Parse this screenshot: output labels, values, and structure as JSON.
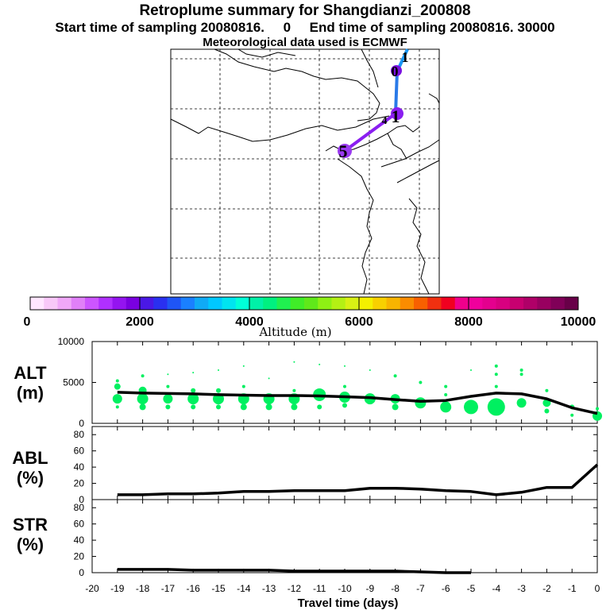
{
  "header": {
    "title": "Retroplume summary for Shangdianzi_200808",
    "subtitle": "Start time of sampling 20080816.     0     End time of sampling 20080816. 30000",
    "met": "Meteorological data used is ECMWF"
  },
  "map": {
    "trajectory_labels": [
      "1",
      "0",
      "1",
      "4",
      "5"
    ]
  },
  "colorbar": {
    "label": "Altitude (m)",
    "ticks": [
      "0",
      "2000",
      "4000",
      "6000",
      "8000",
      "10000"
    ],
    "colors": [
      "#ffe6ff",
      "#f8c8f8",
      "#f0a8f8",
      "#e080f8",
      "#cc55ff",
      "#b030ff",
      "#9414f0",
      "#7a00e0",
      "#4a18e6",
      "#2a30f0",
      "#1f55f5",
      "#1a80ff",
      "#10aaf5",
      "#00c8ff",
      "#00e4f0",
      "#00ffd8",
      "#00f0a8",
      "#00f080",
      "#20f050",
      "#40ec28",
      "#60e81a",
      "#8ef014",
      "#b4f014",
      "#d8f014",
      "#f4f000",
      "#f8d000",
      "#f8b400",
      "#fa8c00",
      "#f86000",
      "#f03010",
      "#f00020",
      "#f0008c",
      "#f0009c",
      "#e4008e",
      "#d80080",
      "#c80070",
      "#b00068",
      "#980060",
      "#800058",
      "#680048"
    ]
  },
  "panels": {
    "alt": {
      "label": "ALT",
      "unit": "(m)",
      "yticks": [
        "0",
        "5000",
        "10000"
      ]
    },
    "abl": {
      "label": "ABL",
      "unit": "(%)",
      "yticks": [
        "0",
        "20",
        "40",
        "60",
        "80"
      ]
    },
    "str": {
      "label": "STR",
      "unit": "(%)",
      "yticks": [
        "0",
        "20",
        "40",
        "60",
        "80"
      ]
    }
  },
  "xaxis": {
    "label": "Travel time (days)",
    "ticks": [
      "-20",
      "-19",
      "-18",
      "-17",
      "-16",
      "-15",
      "-14",
      "-13",
      "-12",
      "-11",
      "-10",
      "-9",
      "-8",
      "-7",
      "-6",
      "-5",
      "-4",
      "-3",
      "-2",
      "-1",
      "0"
    ]
  },
  "chart_data": [
    {
      "type": "line",
      "title": "ALT",
      "ylabel": "ALT (m)",
      "xlabel": "Travel time (days)",
      "xlim": [
        -20,
        0
      ],
      "ylim": [
        0,
        10000
      ],
      "x": [
        -19,
        -18,
        -17,
        -16,
        -15,
        -14,
        -13,
        -12,
        -11,
        -10,
        -9,
        -8,
        -7,
        -6,
        -5,
        -4,
        -3,
        -2,
        -1,
        0
      ],
      "series": [
        {
          "name": "mean altitude",
          "values": [
            3800,
            3700,
            3650,
            3600,
            3500,
            3450,
            3400,
            3400,
            3350,
            3250,
            3150,
            2900,
            2700,
            2800,
            3300,
            3700,
            3600,
            3000,
            1900,
            1200
          ]
        }
      ]
    },
    {
      "type": "scatter",
      "title": "ALT distribution",
      "xlim": [
        -20,
        0
      ],
      "ylim": [
        0,
        10000
      ],
      "series": [
        {
          "name": "plume altitude fraction",
          "color": "#00f060",
          "points": [
            [
              -19,
              5200,
              2
            ],
            [
              -19,
              4500,
              4
            ],
            [
              -19,
              3000,
              6
            ],
            [
              -19,
              2000,
              2
            ],
            [
              -18,
              5800,
              2
            ],
            [
              -18,
              4000,
              5
            ],
            [
              -18,
              3000,
              7
            ],
            [
              -18,
              2000,
              4
            ],
            [
              -17,
              6000,
              1
            ],
            [
              -17,
              4500,
              2
            ],
            [
              -17,
              3000,
              6
            ],
            [
              -17,
              2000,
              3
            ],
            [
              -16,
              6200,
              1
            ],
            [
              -16,
              4000,
              3
            ],
            [
              -16,
              3000,
              7
            ],
            [
              -16,
              2000,
              3
            ],
            [
              -15,
              6500,
              1
            ],
            [
              -15,
              4000,
              3
            ],
            [
              -15,
              3000,
              7
            ],
            [
              -15,
              2000,
              3
            ],
            [
              -14,
              7000,
              1
            ],
            [
              -14,
              4500,
              2
            ],
            [
              -14,
              3000,
              7
            ],
            [
              -14,
              2000,
              4
            ],
            [
              -13,
              5500,
              1
            ],
            [
              -13,
              3000,
              7
            ],
            [
              -13,
              2000,
              4
            ],
            [
              -12,
              7500,
              1
            ],
            [
              -12,
              4000,
              2
            ],
            [
              -12,
              3000,
              7
            ],
            [
              -12,
              2000,
              4
            ],
            [
              -11,
              7200,
              1
            ],
            [
              -11,
              3500,
              8
            ],
            [
              -11,
              2000,
              3
            ],
            [
              -10,
              7000,
              1
            ],
            [
              -10,
              4500,
              2
            ],
            [
              -10,
              3200,
              7
            ],
            [
              -10,
              2200,
              3
            ],
            [
              -9,
              6500,
              1
            ],
            [
              -9,
              3000,
              7
            ],
            [
              -8,
              5800,
              2
            ],
            [
              -8,
              3000,
              6
            ],
            [
              -8,
              2000,
              4
            ],
            [
              -7,
              5000,
              2
            ],
            [
              -7,
              2500,
              7
            ],
            [
              -6,
              4500,
              2
            ],
            [
              -6,
              3500,
              2
            ],
            [
              -6,
              2000,
              7
            ],
            [
              -5,
              6500,
              1
            ],
            [
              -5,
              2000,
              9
            ],
            [
              -4,
              7000,
              2
            ],
            [
              -4,
              6000,
              2
            ],
            [
              -4,
              4500,
              2
            ],
            [
              -4,
              2000,
              11
            ],
            [
              -3,
              6500,
              2
            ],
            [
              -3,
              6000,
              2
            ],
            [
              -3,
              2500,
              6
            ],
            [
              -2,
              4000,
              2
            ],
            [
              -2,
              2500,
              5
            ],
            [
              -2,
              1500,
              3
            ],
            [
              -1,
              2000,
              3
            ],
            [
              -1,
              1000,
              2
            ],
            [
              0,
              1800,
              2
            ],
            [
              0,
              900,
              6
            ]
          ]
        }
      ]
    },
    {
      "type": "line",
      "title": "ABL",
      "ylabel": "ABL (%)",
      "xlabel": "Travel time (days)",
      "xlim": [
        -20,
        0
      ],
      "ylim": [
        0,
        90
      ],
      "x": [
        -19,
        -18,
        -17,
        -16,
        -15,
        -14,
        -13,
        -12,
        -11,
        -10,
        -9,
        -8,
        -7,
        -6,
        -5,
        -4,
        -3,
        -2,
        -1,
        0
      ],
      "series": [
        {
          "name": "ABL fraction",
          "values": [
            6,
            6,
            7,
            7,
            8,
            10,
            10,
            11,
            11,
            11,
            14,
            14,
            13,
            11,
            10,
            6,
            9,
            15,
            15,
            43
          ]
        }
      ]
    },
    {
      "type": "line",
      "title": "STR",
      "ylabel": "STR (%)",
      "xlabel": "Travel time (days)",
      "xlim": [
        -20,
        0
      ],
      "ylim": [
        0,
        90
      ],
      "x": [
        -19,
        -18,
        -17,
        -16,
        -15,
        -14,
        -13,
        -12,
        -11,
        -10,
        -9,
        -8,
        -7,
        -6,
        -5
      ],
      "series": [
        {
          "name": "stratospheric fraction",
          "values": [
            4,
            4,
            4,
            3,
            3,
            3,
            3,
            2,
            2,
            2,
            2,
            2,
            1,
            0,
            0
          ]
        }
      ]
    }
  ]
}
